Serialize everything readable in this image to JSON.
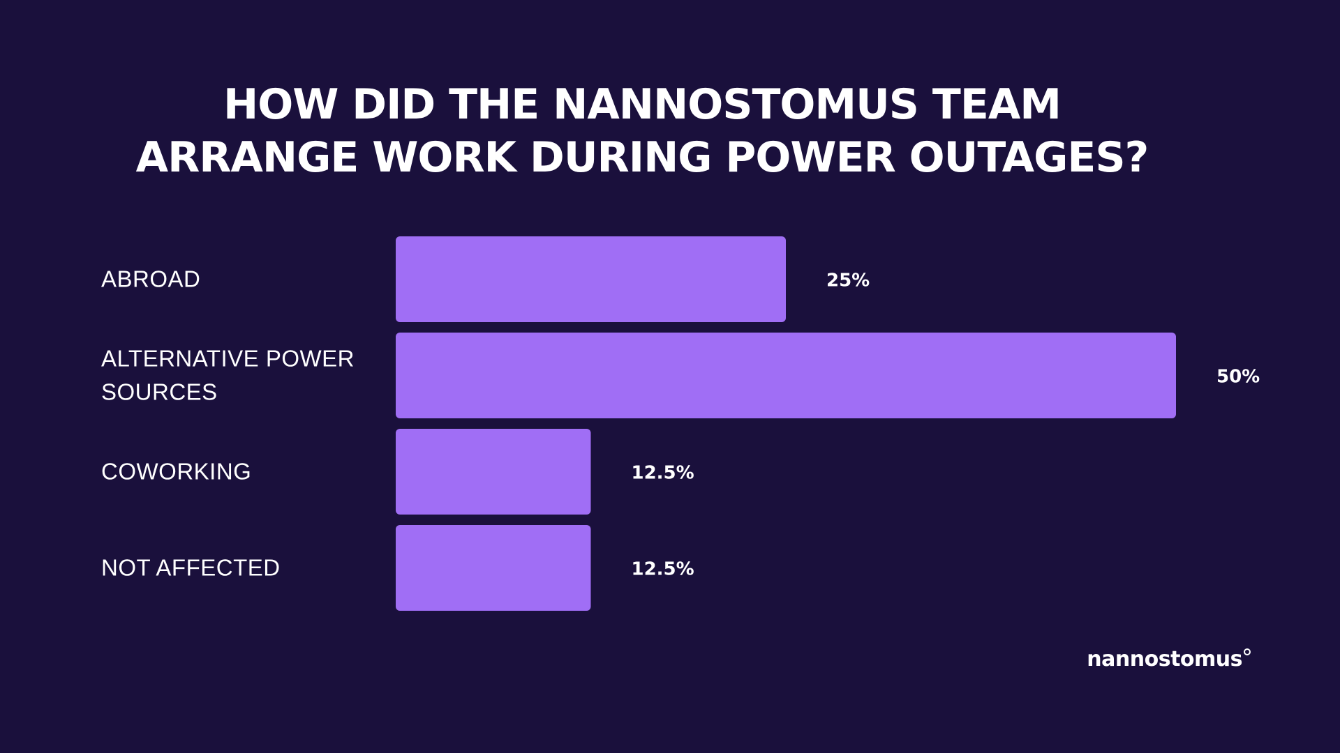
{
  "colors": {
    "background": "#1a103c",
    "bar": "#a06ef5",
    "text": "#ffffff"
  },
  "brand": {
    "logo_text": "nannostomus"
  },
  "chart_data": {
    "type": "bar",
    "orientation": "horizontal",
    "title_lines": [
      "HOW DID THE NANNOSTOMUS TEAM",
      "ARRANGE WORK DURING POWER OUTAGES?"
    ],
    "categories": [
      [
        "ABROAD"
      ],
      [
        "ALTERNATIVE POWER",
        "SOURCES"
      ],
      [
        "COWORKING"
      ],
      [
        "NOT AFFECTED"
      ]
    ],
    "values": [
      25,
      50,
      12.5,
      12.5
    ],
    "value_labels": [
      "25%",
      "50%",
      "12.5%",
      "12.5%"
    ],
    "xlim": [
      0,
      50
    ],
    "grid": false,
    "legend": "none"
  }
}
